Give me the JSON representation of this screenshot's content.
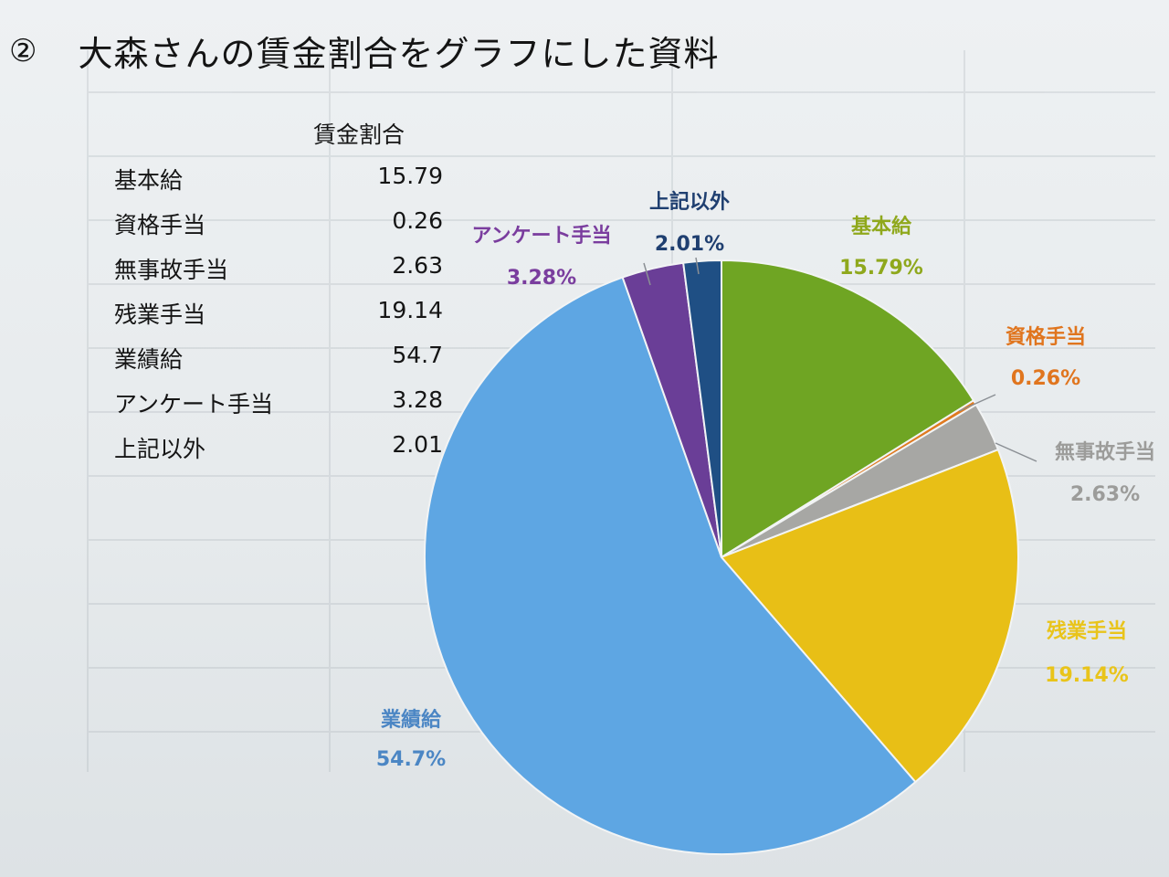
{
  "title": {
    "number": "②",
    "text": "大森さんの賃金割合をグラフにした資料"
  },
  "table": {
    "header": "賃金割合",
    "rows": [
      {
        "label": "基本給",
        "value": "15.79"
      },
      {
        "label": "資格手当",
        "value": "0.26"
      },
      {
        "label": "無事故手当",
        "value": "2.63"
      },
      {
        "label": "残業手当",
        "value": "19.14"
      },
      {
        "label": "業績給",
        "value": "54.7"
      },
      {
        "label": "アンケート手当",
        "value": "3.28"
      },
      {
        "label": "上記以外",
        "value": "2.01"
      }
    ]
  },
  "chart_data": {
    "type": "pie",
    "title": "",
    "start": "12 o'clock, clockwise",
    "slices": [
      {
        "name": "基本給",
        "value": 15.79,
        "label": "15.79%",
        "color": "#6fa523",
        "label_color": "#8fa81c"
      },
      {
        "name": "資格手当",
        "value": 0.26,
        "label": "0.26%",
        "color": "#e07a20",
        "label_color": "#e0751e"
      },
      {
        "name": "無事故手当",
        "value": 2.63,
        "label": "2.63%",
        "color": "#a7a7a4",
        "label_color": "#9c9c9a"
      },
      {
        "name": "残業手当",
        "value": 19.14,
        "label": "19.14%",
        "color": "#e8bf16",
        "label_color": "#e9c41a"
      },
      {
        "name": "業績給",
        "value": 54.7,
        "label": "54.7%",
        "color": "#5ea6e3",
        "label_color": "#4b86c4"
      },
      {
        "name": "アンケート手当",
        "value": 3.28,
        "label": "3.28%",
        "color": "#6a3e97",
        "label_color": "#7a3d9e"
      },
      {
        "name": "上記以外",
        "value": 2.01,
        "label": "2.01%",
        "color": "#1f4f84",
        "label_color": "#1f3f70"
      }
    ]
  }
}
